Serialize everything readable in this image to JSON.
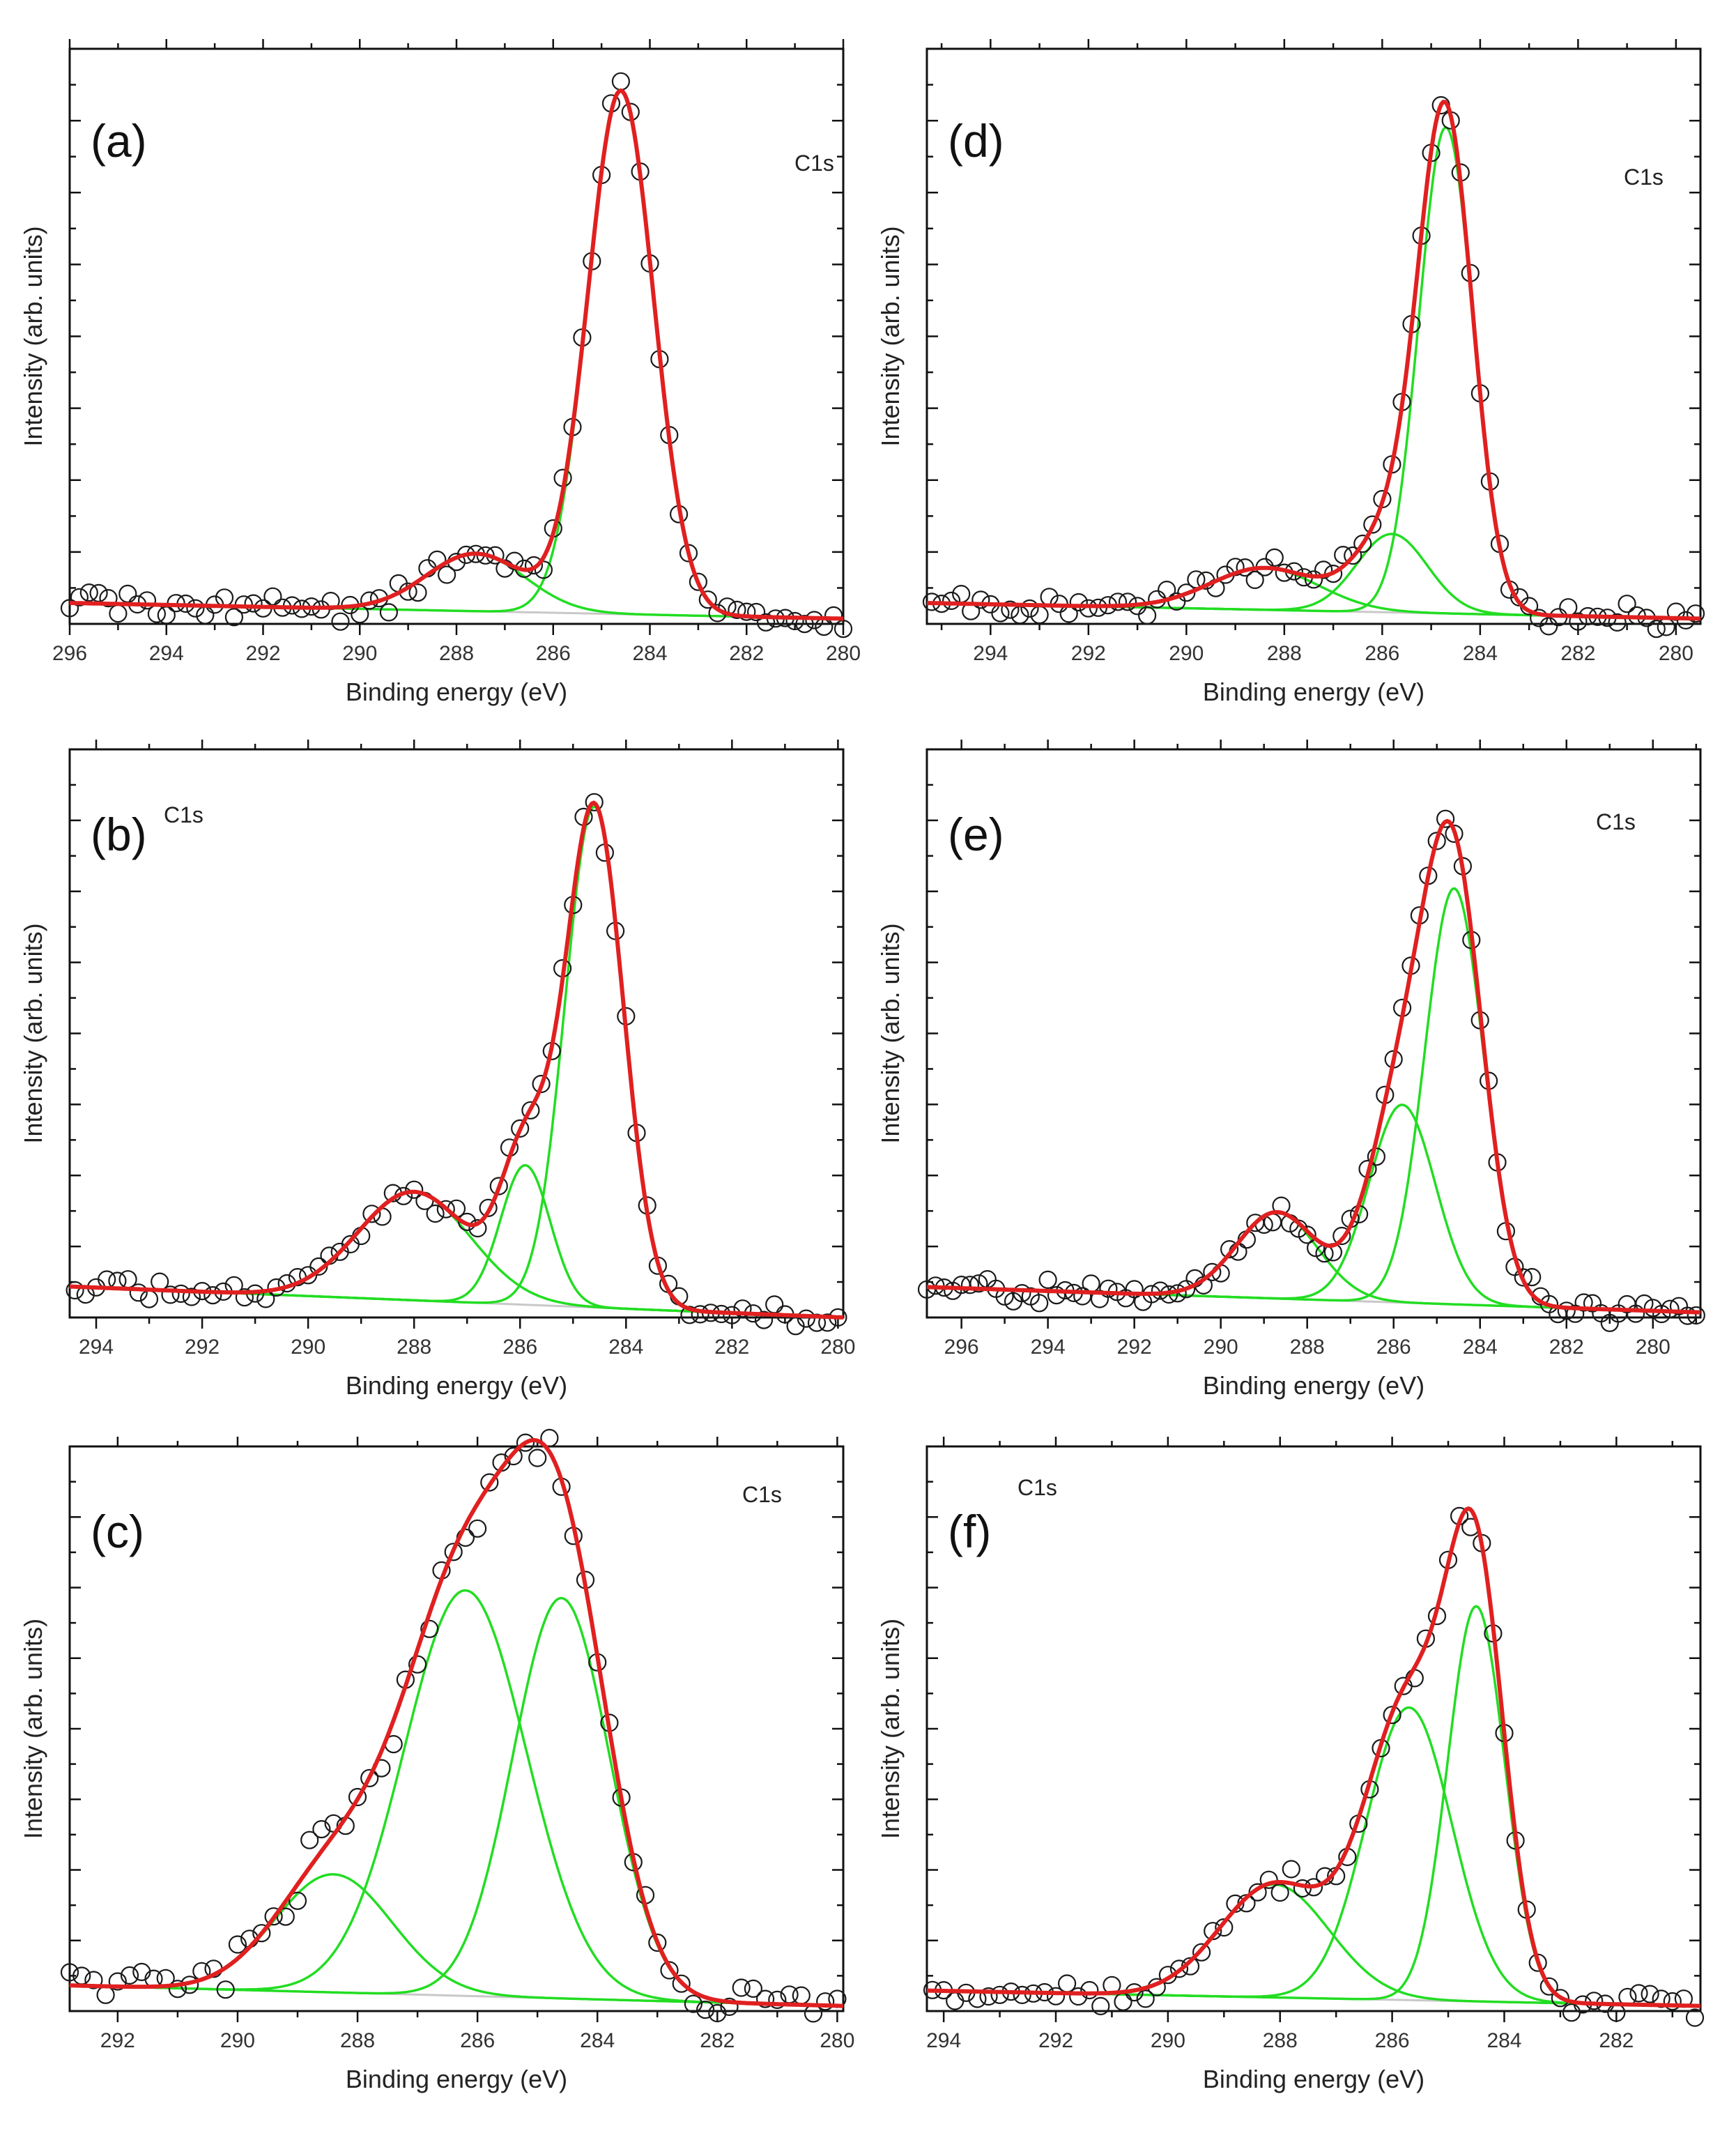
{
  "figure": {
    "xlabel": "Binding energy (eV)",
    "ylabel": "Intensity (arb. units)",
    "colors": {
      "data_marker": "#1a1a1a",
      "total_fit": "#e02020",
      "component": "#22dd22",
      "background": "#c8c8c8"
    }
  },
  "chart_data": [
    {
      "type": "scatter",
      "panel_label": "(a)",
      "annotation": "C1s",
      "xlabel": "Binding energy (eV)",
      "ylabel": "Intensity (arb. units)",
      "xlim": [
        296,
        280
      ],
      "ylim": [
        -0.03,
        1.07
      ],
      "x_reversed": true,
      "grid": false,
      "x_ticks": [
        296,
        294,
        292,
        290,
        288,
        286,
        284,
        282,
        280
      ],
      "background": {
        "left": 0.01,
        "right": -0.02
      },
      "components": [
        {
          "center": 284.6,
          "height": 1.0,
          "fwhm": 1.6
        },
        {
          "center": 287.6,
          "height": 0.11,
          "fwhm": 2.4
        }
      ],
      "x_step": 0.2,
      "noise": 0.012
    },
    {
      "type": "scatter",
      "panel_label": "(d)",
      "annotation": "C1s",
      "xlabel": "Binding energy (eV)",
      "ylabel": "Intensity (arb. units)",
      "xlim": [
        295.3,
        279.5
      ],
      "ylim": [
        -0.03,
        1.07
      ],
      "x_reversed": true,
      "grid": false,
      "x_ticks": [
        294,
        292,
        290,
        288,
        286,
        284,
        282,
        280
      ],
      "background": {
        "left": 0.01,
        "right": -0.02
      },
      "components": [
        {
          "center": 284.7,
          "height": 0.93,
          "fwhm": 1.3
        },
        {
          "center": 285.8,
          "height": 0.15,
          "fwhm": 1.7
        },
        {
          "center": 288.4,
          "height": 0.08,
          "fwhm": 2.6
        }
      ],
      "x_step": 0.2,
      "noise": 0.011
    },
    {
      "type": "scatter",
      "panel_label": "(b)",
      "annotation": "C1s",
      "xlabel": "Binding energy (eV)",
      "ylabel": "Intensity (arb. units)",
      "xlim": [
        294.5,
        279.9
      ],
      "ylim": [
        -0.03,
        1.07
      ],
      "x_reversed": true,
      "grid": false,
      "x_ticks": [
        294,
        292,
        290,
        288,
        286,
        284,
        282,
        280
      ],
      "background": {
        "left": 0.03,
        "right": -0.03
      },
      "components": [
        {
          "center": 284.6,
          "height": 0.97,
          "fwhm": 1.3
        },
        {
          "center": 285.9,
          "height": 0.27,
          "fwhm": 1.1
        },
        {
          "center": 288.0,
          "height": 0.21,
          "fwhm": 2.5
        }
      ],
      "x_step": 0.2,
      "noise": 0.012
    },
    {
      "type": "scatter",
      "panel_label": "(e)",
      "annotation": "C1s",
      "xlabel": "Binding energy (eV)",
      "ylabel": "Intensity (arb. units)",
      "xlim": [
        296.8,
        278.9
      ],
      "ylim": [
        -0.05,
        1.07
      ],
      "x_reversed": true,
      "grid": false,
      "x_ticks": [
        296,
        294,
        292,
        290,
        288,
        286,
        284,
        282,
        280
      ],
      "background": {
        "left": 0.01,
        "right": -0.04
      },
      "components": [
        {
          "center": 284.6,
          "height": 0.82,
          "fwhm": 1.6
        },
        {
          "center": 285.8,
          "height": 0.39,
          "fwhm": 1.8
        },
        {
          "center": 288.7,
          "height": 0.17,
          "fwhm": 2.2
        }
      ],
      "x_step": 0.2,
      "noise": 0.012
    },
    {
      "type": "scatter",
      "panel_label": "(c)",
      "annotation": "C1s",
      "xlabel": "Binding energy (eV)",
      "ylabel": "Intensity (arb. units)",
      "xlim": [
        292.8,
        279.9
      ],
      "ylim": [
        -0.03,
        1.07
      ],
      "x_reversed": true,
      "grid": false,
      "x_ticks": [
        292,
        290,
        288,
        286,
        284,
        282,
        280
      ],
      "background": {
        "left": 0.02,
        "right": -0.02
      },
      "components": [
        {
          "center": 284.6,
          "height": 0.78,
          "fwhm": 1.9
        },
        {
          "center": 286.2,
          "height": 0.79,
          "fwhm": 2.4
        },
        {
          "center": 288.4,
          "height": 0.23,
          "fwhm": 2.3
        }
      ],
      "x_step": 0.2,
      "noise": 0.02
    },
    {
      "type": "scatter",
      "panel_label": "(f)",
      "annotation": "C1s",
      "xlabel": "Binding energy (eV)",
      "ylabel": "Intensity (arb. units)",
      "xlim": [
        294.3,
        280.5
      ],
      "ylim": [
        -0.03,
        1.07
      ],
      "x_reversed": true,
      "grid": false,
      "x_ticks": [
        294,
        292,
        290,
        288,
        286,
        284,
        282
      ],
      "background": {
        "left": 0.01,
        "right": -0.02
      },
      "components": [
        {
          "center": 284.5,
          "height": 0.77,
          "fwhm": 1.2
        },
        {
          "center": 285.7,
          "height": 0.57,
          "fwhm": 1.8
        },
        {
          "center": 288.1,
          "height": 0.22,
          "fwhm": 2.3
        }
      ],
      "x_step": 0.2,
      "noise": 0.012
    }
  ]
}
